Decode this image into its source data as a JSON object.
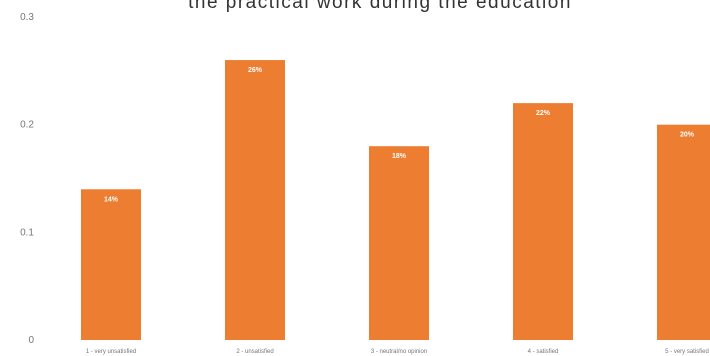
{
  "chart_data": {
    "type": "bar",
    "title": "the practical work during the education",
    "categories": [
      "1 - very unsatisfied",
      "2 - unsatisfied",
      "3 - neutral/no opinion",
      "4 - satisfied",
      "5 - very satisfied"
    ],
    "values": [
      0.14,
      0.26,
      0.18,
      0.22,
      0.2
    ],
    "data_labels": [
      "14%",
      "26%",
      "18%",
      "22%",
      "20%"
    ],
    "yticks": [
      "0",
      "0.1",
      "0.2",
      "0.3"
    ],
    "ylim": [
      0,
      0.3
    ],
    "grid": false,
    "legend": "none",
    "bar_color": "#ED7D31"
  }
}
